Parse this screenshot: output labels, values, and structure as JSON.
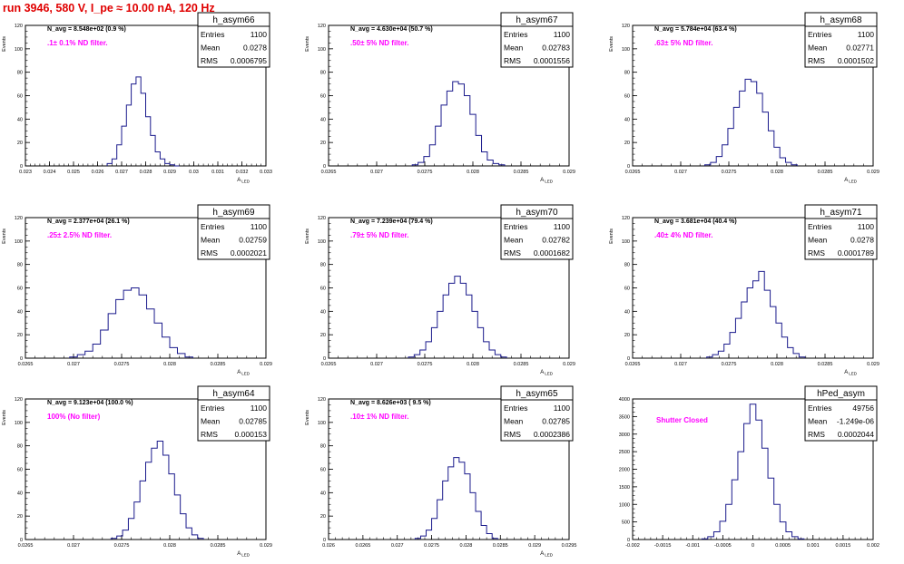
{
  "header": {
    "run_title": "run 3946,   580 V, I_pe ≈ 10.00 nA, 120 Hz"
  },
  "colors": {
    "hist_line": "#1a1a8c",
    "annotation": "#ff00ff",
    "title": "#e00000"
  },
  "stats_labels": {
    "entries": "Entries",
    "mean": "Mean",
    "rms": "RMS"
  },
  "chart_data": [
    {
      "type": "bar",
      "title": "h_asym66",
      "entries": "1100",
      "mean": "0.0278",
      "rms": "0.0006795",
      "n_avg": "N_avg = 8.548e+02 (0.9 %)",
      "annotation": ".1± 0.1% ND filter.",
      "ylabel": "Events",
      "xlabel": "A_LED",
      "ylim": [
        0,
        120
      ],
      "yticks": [
        "0",
        "20",
        "40",
        "60",
        "80",
        "100",
        "120"
      ],
      "xticks": [
        "0.023",
        "0.024",
        "0.025",
        "0.026",
        "0.027",
        "0.028",
        "0.029",
        "0.03",
        "0.031",
        "0.032",
        "0.033"
      ],
      "xlim": [
        0.023,
        0.033
      ],
      "bins": {
        "x": [
          0.0265,
          0.0267,
          0.0269,
          0.0271,
          0.0273,
          0.0275,
          0.0277,
          0.0279,
          0.0281,
          0.0283,
          0.0285,
          0.0287,
          0.0289,
          0.0291,
          0.0293
        ],
        "values": [
          2,
          6,
          18,
          34,
          52,
          70,
          76,
          62,
          42,
          26,
          12,
          6,
          2,
          1,
          0
        ]
      }
    },
    {
      "type": "bar",
      "title": "h_asym67",
      "entries": "1100",
      "mean": "0.02783",
      "rms": "0.0001556",
      "n_avg": "N_avg = 4.630e+04 (50.7 %)",
      "annotation": ".50± 5% ND filter.",
      "ylabel": "Events",
      "xlabel": "A_LED",
      "ylim": [
        0,
        120
      ],
      "yticks": [
        "0",
        "20",
        "40",
        "60",
        "80",
        "100",
        "120"
      ],
      "xticks": [
        "0.0265",
        "0.027",
        "0.0275",
        "0.028",
        "0.0285",
        "0.029"
      ],
      "xlim": [
        0.0265,
        0.029
      ],
      "bins": {
        "x": [
          0.0274,
          0.02746,
          0.02752,
          0.02758,
          0.02764,
          0.0277,
          0.02776,
          0.02782,
          0.02788,
          0.02794,
          0.028,
          0.02806,
          0.02812,
          0.02818,
          0.02824,
          0.0283
        ],
        "values": [
          1,
          3,
          8,
          18,
          34,
          52,
          64,
          72,
          70,
          60,
          44,
          26,
          12,
          5,
          2,
          1
        ]
      }
    },
    {
      "type": "bar",
      "title": "h_asym68",
      "entries": "1100",
      "mean": "0.02771",
      "rms": "0.0001502",
      "n_avg": "N_avg = 5.784e+04 (63.4 %)",
      "annotation": ".63± 5% ND filter.",
      "ylabel": "Events",
      "xlabel": "A_LED",
      "ylim": [
        0,
        120
      ],
      "yticks": [
        "0",
        "20",
        "40",
        "60",
        "80",
        "100",
        "120"
      ],
      "xticks": [
        "0.0265",
        "0.027",
        "0.0275",
        "0.028",
        "0.0285",
        "0.029"
      ],
      "xlim": [
        0.0265,
        0.029
      ],
      "bins": {
        "x": [
          0.02728,
          0.02734,
          0.0274,
          0.02746,
          0.02752,
          0.02758,
          0.02764,
          0.0277,
          0.02776,
          0.02782,
          0.02788,
          0.02794,
          0.028,
          0.02806,
          0.02812,
          0.02818
        ],
        "values": [
          1,
          3,
          8,
          18,
          32,
          50,
          64,
          74,
          72,
          62,
          46,
          30,
          16,
          7,
          3,
          1
        ]
      }
    },
    {
      "type": "bar",
      "title": "h_asym69",
      "entries": "1100",
      "mean": "0.02759",
      "rms": "0.0002021",
      "n_avg": "N_avg = 2.377e+04 (26.1 %)",
      "annotation": ".25± 2.5% ND filter.",
      "ylabel": "Events",
      "xlabel": "A_LED",
      "ylim": [
        0,
        120
      ],
      "yticks": [
        "0",
        "20",
        "40",
        "60",
        "80",
        "100",
        "120"
      ],
      "xticks": [
        "0.0265",
        "0.027",
        "0.0275",
        "0.028",
        "0.0285",
        "0.029"
      ],
      "xlim": [
        0.0265,
        0.029
      ],
      "bins": {
        "x": [
          0.027,
          0.02708,
          0.02716,
          0.02724,
          0.02732,
          0.0274,
          0.02748,
          0.02756,
          0.02764,
          0.02772,
          0.0278,
          0.02788,
          0.02796,
          0.02804,
          0.02812,
          0.0282
        ],
        "values": [
          1,
          3,
          6,
          12,
          24,
          38,
          50,
          58,
          60,
          54,
          42,
          30,
          18,
          9,
          4,
          1
        ]
      }
    },
    {
      "type": "bar",
      "title": "h_asym70",
      "entries": "1100",
      "mean": "0.02782",
      "rms": "0.0001682",
      "n_avg": "N_avg = 7.239e+04 (79.4 %)",
      "annotation": ".79± 5% ND filter.",
      "ylabel": "Events",
      "xlabel": "A_LED",
      "ylim": [
        0,
        120
      ],
      "yticks": [
        "0",
        "20",
        "40",
        "60",
        "80",
        "100",
        "120"
      ],
      "xticks": [
        "0.0265",
        "0.027",
        "0.0275",
        "0.028",
        "0.0285",
        "0.029"
      ],
      "xlim": [
        0.0265,
        0.029
      ],
      "bins": {
        "x": [
          0.02736,
          0.02742,
          0.02748,
          0.02754,
          0.0276,
          0.02766,
          0.02772,
          0.02778,
          0.02784,
          0.0279,
          0.02796,
          0.02802,
          0.02808,
          0.02814,
          0.0282,
          0.02826,
          0.02832
        ],
        "values": [
          1,
          3,
          7,
          14,
          26,
          40,
          54,
          64,
          70,
          64,
          54,
          40,
          26,
          14,
          7,
          3,
          1
        ]
      }
    },
    {
      "type": "bar",
      "title": "h_asym71",
      "entries": "1100",
      "mean": "0.0278",
      "rms": "0.0001789",
      "n_avg": "N_avg = 3.681e+04 (40.4 %)",
      "annotation": ".40± 4% ND filter.",
      "ylabel": "Events",
      "xlabel": "A_LED",
      "ylim": [
        0,
        120
      ],
      "yticks": [
        "0",
        "20",
        "40",
        "60",
        "80",
        "100",
        "120"
      ],
      "xticks": [
        "0.0265",
        "0.027",
        "0.0275",
        "0.028",
        "0.0285",
        "0.029"
      ],
      "xlim": [
        0.0265,
        0.029
      ],
      "bins": {
        "x": [
          0.0273,
          0.02736,
          0.02742,
          0.02748,
          0.02754,
          0.0276,
          0.02766,
          0.02772,
          0.02778,
          0.02784,
          0.0279,
          0.02796,
          0.02802,
          0.02808,
          0.02814,
          0.0282,
          0.02826
        ],
        "values": [
          1,
          3,
          6,
          12,
          22,
          34,
          48,
          60,
          66,
          74,
          58,
          44,
          30,
          18,
          9,
          4,
          1
        ]
      }
    },
    {
      "type": "bar",
      "title": "h_asym64",
      "entries": "1100",
      "mean": "0.02785",
      "rms": "0.000153",
      "n_avg": "N_avg = 9.123e+04 (100.0 %)",
      "annotation": "100% (No filter)",
      "ylabel": "Events",
      "xlabel": "A_LED",
      "ylim": [
        0,
        120
      ],
      "yticks": [
        "0",
        "20",
        "40",
        "60",
        "80",
        "100",
        "120"
      ],
      "xticks": [
        "0.0265",
        "0.027",
        "0.0275",
        "0.028",
        "0.0285",
        "0.029"
      ],
      "xlim": [
        0.0265,
        0.029
      ],
      "bins": {
        "x": [
          0.02742,
          0.02748,
          0.02754,
          0.0276,
          0.02766,
          0.02772,
          0.02778,
          0.02784,
          0.0279,
          0.02796,
          0.02802,
          0.02808,
          0.02814,
          0.0282,
          0.02826,
          0.02832
        ],
        "values": [
          1,
          3,
          8,
          18,
          32,
          50,
          66,
          78,
          84,
          72,
          56,
          38,
          22,
          10,
          4,
          1
        ]
      }
    },
    {
      "type": "bar",
      "title": "h_asym65",
      "entries": "1100",
      "mean": "0.02785",
      "rms": "0.0002386",
      "n_avg": "N_avg = 8.626e+03 ( 9.5 %)",
      "annotation": ".10± 1% ND filter.",
      "ylabel": "Events",
      "xlabel": "A_LED",
      "ylim": [
        0,
        120
      ],
      "yticks": [
        "0",
        "20",
        "40",
        "60",
        "80",
        "100",
        "120"
      ],
      "xticks": [
        "0.026",
        "0.0265",
        "0.027",
        "0.0275",
        "0.028",
        "0.0285",
        "0.029",
        "0.0295"
      ],
      "xlim": [
        0.026,
        0.0295
      ],
      "bins": {
        "x": [
          0.0273,
          0.02738,
          0.02746,
          0.02754,
          0.02762,
          0.0277,
          0.02778,
          0.02786,
          0.02794,
          0.02802,
          0.0281,
          0.02818,
          0.02826,
          0.02834,
          0.02842
        ],
        "values": [
          1,
          3,
          8,
          18,
          34,
          50,
          62,
          70,
          66,
          56,
          40,
          24,
          12,
          5,
          1
        ]
      }
    },
    {
      "type": "bar",
      "title": "hPed_asym",
      "entries": "49756",
      "mean": "-1.249e-06",
      "rms": "0.0002044",
      "n_avg": "",
      "annotation": "Shutter Closed",
      "ylabel": "",
      "xlabel": "",
      "ylim": [
        0,
        4000
      ],
      "yticks": [
        "0",
        "500",
        "1000",
        "1500",
        "2000",
        "2500",
        "3000",
        "3500",
        "4000"
      ],
      "xticks": [
        "-0.002",
        "-0.0015",
        "-0.001",
        "-0.0005",
        "0",
        "0.0005",
        "0.001",
        "0.0015",
        "0.002"
      ],
      "xlim": [
        -0.002,
        0.002
      ],
      "bins": {
        "x": [
          -0.0008,
          -0.0007,
          -0.0006,
          -0.0005,
          -0.0004,
          -0.0003,
          -0.0002,
          -0.0001,
          0.0,
          0.0001,
          0.0002,
          0.0003,
          0.0004,
          0.0005,
          0.0006,
          0.0007,
          0.0008
        ],
        "values": [
          20,
          80,
          220,
          520,
          1000,
          1700,
          2500,
          3300,
          3850,
          3400,
          2600,
          1750,
          1000,
          500,
          220,
          80,
          20
        ]
      }
    }
  ]
}
